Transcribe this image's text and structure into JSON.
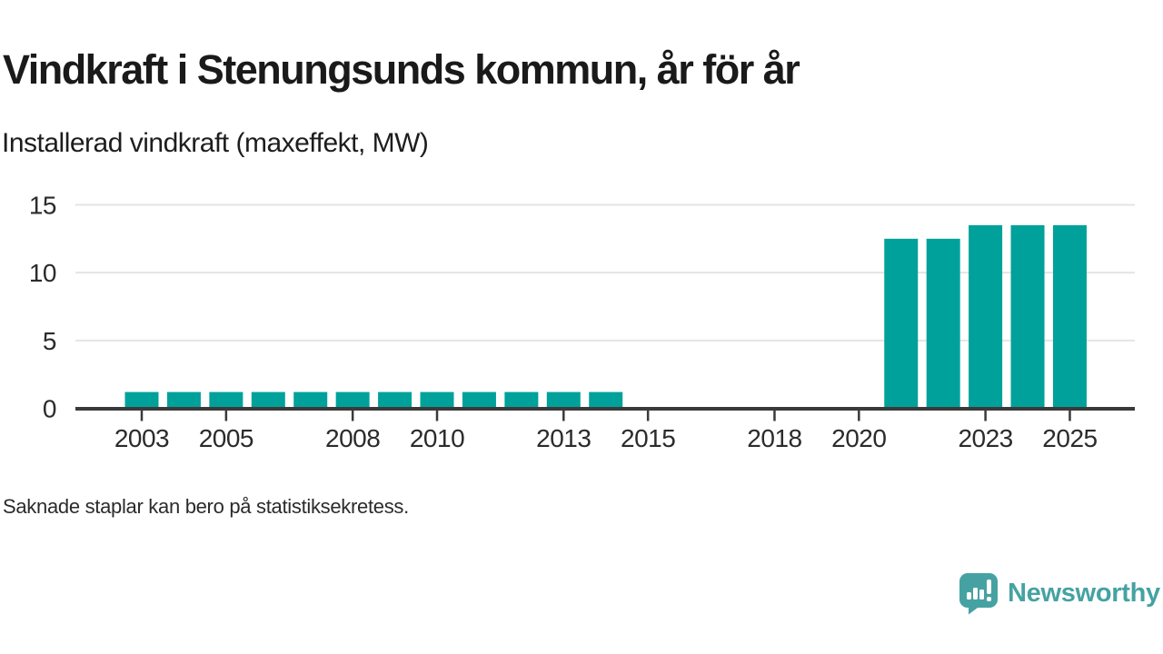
{
  "header": {
    "title": "Vindkraft i Stenungsunds kommun, år för år",
    "subtitle": "Installerad vindkraft (maxeffekt, MW)"
  },
  "footnote": "Saknade staplar kan bero på statistiksekretess.",
  "branding": {
    "name": "Newsworthy",
    "logo_icon": "bar-chart-speech-bubble-icon"
  },
  "colors": {
    "bar": "#00a19a",
    "axis": "#3a3a3a",
    "grid": "#e4e4e4",
    "title": "#1a1a1a",
    "logo": "#46a2a2"
  },
  "chart_data": {
    "type": "bar",
    "title": "Vindkraft i Stenungsunds kommun, år för år",
    "ylabel": "Installerad vindkraft (maxeffekt, MW)",
    "unit": "MW",
    "x": [
      2003,
      2004,
      2005,
      2006,
      2007,
      2008,
      2009,
      2010,
      2011,
      2012,
      2013,
      2014,
      2015,
      2016,
      2017,
      2018,
      2019,
      2020,
      2021,
      2022,
      2023,
      2024,
      2025
    ],
    "values": [
      1.2,
      1.2,
      1.2,
      1.2,
      1.2,
      1.2,
      1.2,
      1.2,
      1.2,
      1.2,
      1.2,
      1.2,
      null,
      null,
      null,
      null,
      null,
      null,
      12.5,
      12.5,
      13.5,
      13.5,
      13.5
    ],
    "ylim": [
      0,
      15
    ],
    "yticks": [
      0,
      5,
      10,
      15
    ],
    "xticks": [
      2003,
      2005,
      2008,
      2010,
      2013,
      2015,
      2018,
      2020,
      2023,
      2025
    ],
    "grid": "horizontal",
    "legend": "none"
  }
}
